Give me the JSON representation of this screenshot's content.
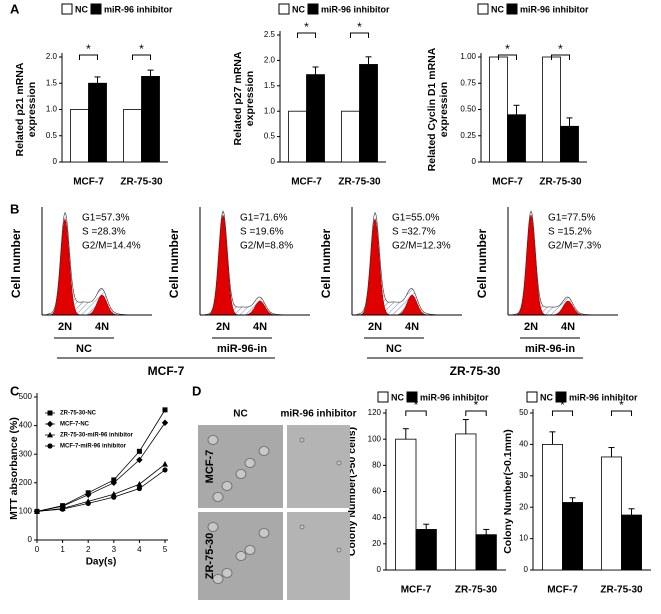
{
  "panel_labels": [
    "A",
    "B",
    "C",
    "D"
  ],
  "chart_data": [
    {
      "type": "bar",
      "y_label": [
        "Related p21 mRNA",
        "expression"
      ],
      "categories": [
        "MCF-7",
        "ZR-75-30"
      ],
      "series": [
        {
          "name": "NC",
          "color": "#ffffff",
          "values": [
            1,
            1
          ]
        },
        {
          "name": "miR-96 inhibitor",
          "color": "#000000",
          "values": [
            1.5,
            1.63
          ],
          "errors": [
            0.12,
            0.12
          ]
        }
      ],
      "ylim": [
        0,
        2.0
      ],
      "yticks": [
        0,
        0.5,
        {
          "value": 1.0,
          "label": "1.0"
        },
        1.5,
        {
          "value": 2.0,
          "label": "2.0"
        }
      ],
      "annotations": [
        "*",
        "*"
      ]
    },
    {
      "type": "bar",
      "y_label": [
        "Related p27 mRNA",
        "expression"
      ],
      "categories": [
        "MCF-7",
        "ZR-75-30"
      ],
      "series": [
        {
          "name": "NC",
          "color": "#ffffff",
          "values": [
            1,
            1
          ]
        },
        {
          "name": "miR-96 inhibitor",
          "color": "#000000",
          "values": [
            1.72,
            1.92
          ],
          "errors": [
            0.15,
            0.15
          ]
        }
      ],
      "ylim": [
        0,
        2.5
      ],
      "yticks": [
        0,
        0.5,
        {
          "value": 1.0,
          "label": "1.0"
        },
        1.5,
        {
          "value": 2.0,
          "label": "2.0"
        },
        2.5
      ],
      "annotations": [
        "*",
        "*"
      ]
    },
    {
      "type": "bar",
      "y_label": [
        "Related Cyclin D1 mRNA",
        "expression"
      ],
      "categories": [
        "MCF-7",
        "ZR-75-30"
      ],
      "series": [
        {
          "name": "NC",
          "color": "#ffffff",
          "values": [
            1,
            1
          ]
        },
        {
          "name": "miR-96 inhibitor",
          "color": "#000000",
          "values": [
            0.45,
            0.34
          ],
          "errors": [
            0.09,
            0.08
          ]
        }
      ],
      "ylim": [
        0,
        1.0
      ],
      "yticks": [
        0,
        0.25,
        {
          "value": 0.5,
          "label": "0.50"
        },
        0.75,
        {
          "value": 1.0,
          "label": "1.00"
        }
      ],
      "annotations": [
        "*",
        "*"
      ]
    },
    {
      "type": "line",
      "x_label": "Day(s)",
      "y_label": [
        "MTT absorbance (%)"
      ],
      "x": [
        0,
        1,
        2,
        3,
        4,
        5
      ],
      "series": [
        {
          "name": "ZR-75-30-NC",
          "color": "#000000",
          "marker": "square",
          "values": [
            100,
            120,
            165,
            210,
            310,
            455
          ]
        },
        {
          "name": "MCF-7-NC",
          "color": "#000000",
          "marker": "diamond",
          "values": [
            100,
            118,
            158,
            200,
            280,
            410
          ]
        },
        {
          "name": "ZR-75-30-miR-96 inhibitor",
          "color": "#000000",
          "marker": "triangle",
          "values": [
            100,
            110,
            135,
            160,
            195,
            265
          ]
        },
        {
          "name": "MCF-7-miR-96 inhibitor",
          "color": "#000000",
          "marker": "circle",
          "values": [
            100,
            108,
            128,
            150,
            180,
            245
          ]
        }
      ],
      "xlim": [
        0,
        5
      ],
      "xticks": [
        0,
        1,
        2,
        3,
        4,
        5
      ],
      "ylim": [
        0,
        500
      ],
      "yticks": [
        0,
        100,
        200,
        300,
        400,
        500
      ]
    },
    {
      "type": "bar",
      "y_label": [
        "Colony Number(>50 cells)"
      ],
      "categories": [
        "MCF-7",
        "ZR-75-30"
      ],
      "series": [
        {
          "name": "NC",
          "color": "#ffffff",
          "values": [
            100,
            104
          ],
          "errors": [
            8,
            11
          ]
        },
        {
          "name": "miR-96 inhibitor",
          "color": "#000000",
          "values": [
            31,
            27
          ],
          "errors": [
            4,
            4
          ]
        }
      ],
      "ylim": [
        0,
        120
      ],
      "yticks": [
        0,
        20,
        40,
        60,
        80,
        100,
        120
      ],
      "annotations": [
        "*",
        "*"
      ]
    },
    {
      "type": "bar",
      "y_label": [
        "Colony Number(>0.1mm)"
      ],
      "categories": [
        "MCF-7",
        "ZR-75-30"
      ],
      "series": [
        {
          "name": "NC",
          "color": "#ffffff",
          "values": [
            40,
            36
          ],
          "errors": [
            4,
            3
          ]
        },
        {
          "name": "miR-96 inhibitor",
          "color": "#000000",
          "values": [
            21.5,
            17.5
          ],
          "errors": [
            1.5,
            2
          ]
        }
      ],
      "ylim": [
        0,
        50
      ],
      "yticks": [
        0,
        10,
        20,
        30,
        40,
        50
      ],
      "annotations": [
        "*",
        "*"
      ]
    }
  ],
  "flow_cytometry": {
    "y_label": "Cell number",
    "panels": [
      {
        "stats": [
          "G1=57.3%",
          "S =28.3%",
          "G2/M=14.4%"
        ],
        "peaks": [
          "2N",
          "4N"
        ]
      },
      {
        "stats": [
          "G1=71.6%",
          "S =19.6%",
          "G2/M=8.8%"
        ],
        "peaks": [
          "2N",
          "4N"
        ]
      },
      {
        "stats": [
          "G1=55.0%",
          "S =32.7%",
          "G2/M=12.3%"
        ],
        "peaks": [
          "2N",
          "4N"
        ]
      },
      {
        "stats": [
          "G1=77.5%",
          "S =15.2%",
          "G2/M=7.3%"
        ],
        "peaks": [
          "2N",
          "4N"
        ]
      }
    ],
    "groups": [
      {
        "label": "MCF-7",
        "conditions": [
          "NC",
          "miR-96-in"
        ]
      },
      {
        "label": "ZR-75-30",
        "conditions": [
          "NC",
          "miR-96-in"
        ]
      }
    ]
  },
  "microscopy": {
    "columns": [
      "NC",
      "miR-96 inhibitor"
    ],
    "rows": [
      "MCF-7",
      "ZR-75-30"
    ]
  }
}
